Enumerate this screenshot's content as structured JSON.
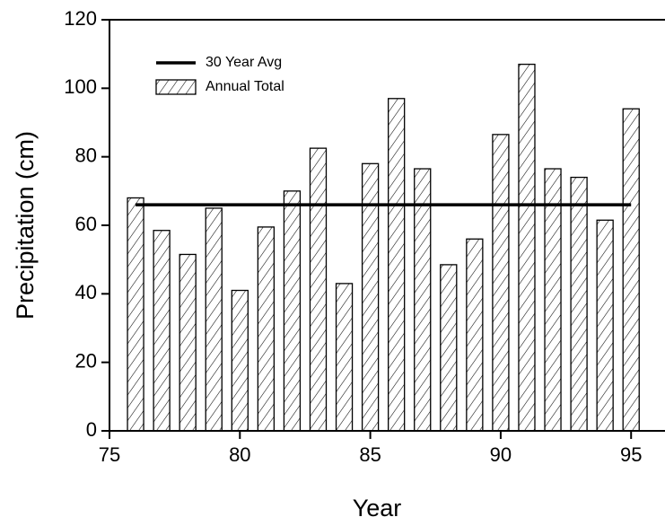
{
  "chart_data": {
    "type": "bar",
    "xlabel": "Year",
    "ylabel": "Precipitation (cm)",
    "series": [
      {
        "name": "30 Year Avg",
        "type": "line",
        "color": "#000000",
        "x": [
          76,
          95
        ],
        "values": [
          66,
          66
        ]
      },
      {
        "name": "Annual Total",
        "type": "bar",
        "color": "#ffffff",
        "x": [
          76,
          77,
          78,
          79,
          80,
          81,
          82,
          83,
          84,
          85,
          86,
          87,
          88,
          89,
          90,
          91,
          92,
          93,
          94,
          95
        ],
        "values": [
          68,
          58.5,
          51.5,
          65,
          41,
          59.5,
          70,
          82.5,
          43,
          78,
          97,
          76.5,
          48.5,
          56,
          86.5,
          107,
          76.5,
          74,
          61.5,
          94
        ]
      }
    ],
    "xlim": [
      75,
      96.3
    ],
    "xticks": [
      75,
      80,
      85,
      90,
      95
    ],
    "ylim": [
      0,
      120
    ],
    "yticks": [
      0,
      20,
      40,
      60,
      80,
      100,
      120
    ],
    "legend": "upper left",
    "grid": false
  }
}
